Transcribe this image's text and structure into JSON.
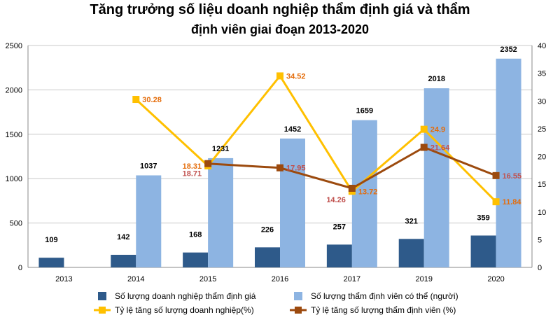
{
  "chart_data": {
    "type": "bar",
    "title_line1": "Tăng trưởng số liệu doanh nghiệp thẩm định giá và thẩm",
    "title_line2": "định viên giai đoạn 2013-2020",
    "categories": [
      "2013",
      "2014",
      "2015",
      "2016",
      "2017",
      "2019",
      "2020"
    ],
    "y_left": {
      "min": 0,
      "max": 2500,
      "ticks": [
        0,
        500,
        1000,
        1500,
        2000,
        2500
      ]
    },
    "y_right": {
      "min": 0,
      "max": 40,
      "ticks": [
        0,
        5,
        10,
        15,
        20,
        25,
        30,
        35,
        40
      ]
    },
    "bar_series": [
      {
        "name": "Số lượng doanh nghiệp thẩm định giá",
        "color": "#2E5A8A",
        "values": [
          109,
          142,
          168,
          226,
          257,
          321,
          359
        ]
      },
      {
        "name": "Số lượng thẩm định viên có thể (người)",
        "color": "#8DB4E2",
        "values": [
          null,
          1037,
          1231,
          1452,
          1659,
          2018,
          2352
        ]
      }
    ],
    "line_series": [
      {
        "name": "Tỷ lệ tăng số lượng doanh nghiệp(%)",
        "color": "#FFC000",
        "label_color": "#E46C0A",
        "values": [
          null,
          30.28,
          18.31,
          34.52,
          13.72,
          24.9,
          11.84
        ],
        "labels": [
          "",
          "30.28",
          "18.31",
          "34.52",
          "13.72",
          "24.9",
          "11.84"
        ]
      },
      {
        "name": "Tỷ lệ tăng số lượng thẩm định viên (%)",
        "color": "#9C4A0E",
        "label_color": "#C0504D",
        "values": [
          null,
          null,
          18.71,
          17.95,
          14.26,
          21.64,
          16.55
        ],
        "labels": [
          "",
          "",
          "18.71",
          "17.95",
          "14.26",
          "21.64",
          "16.55"
        ]
      }
    ]
  }
}
